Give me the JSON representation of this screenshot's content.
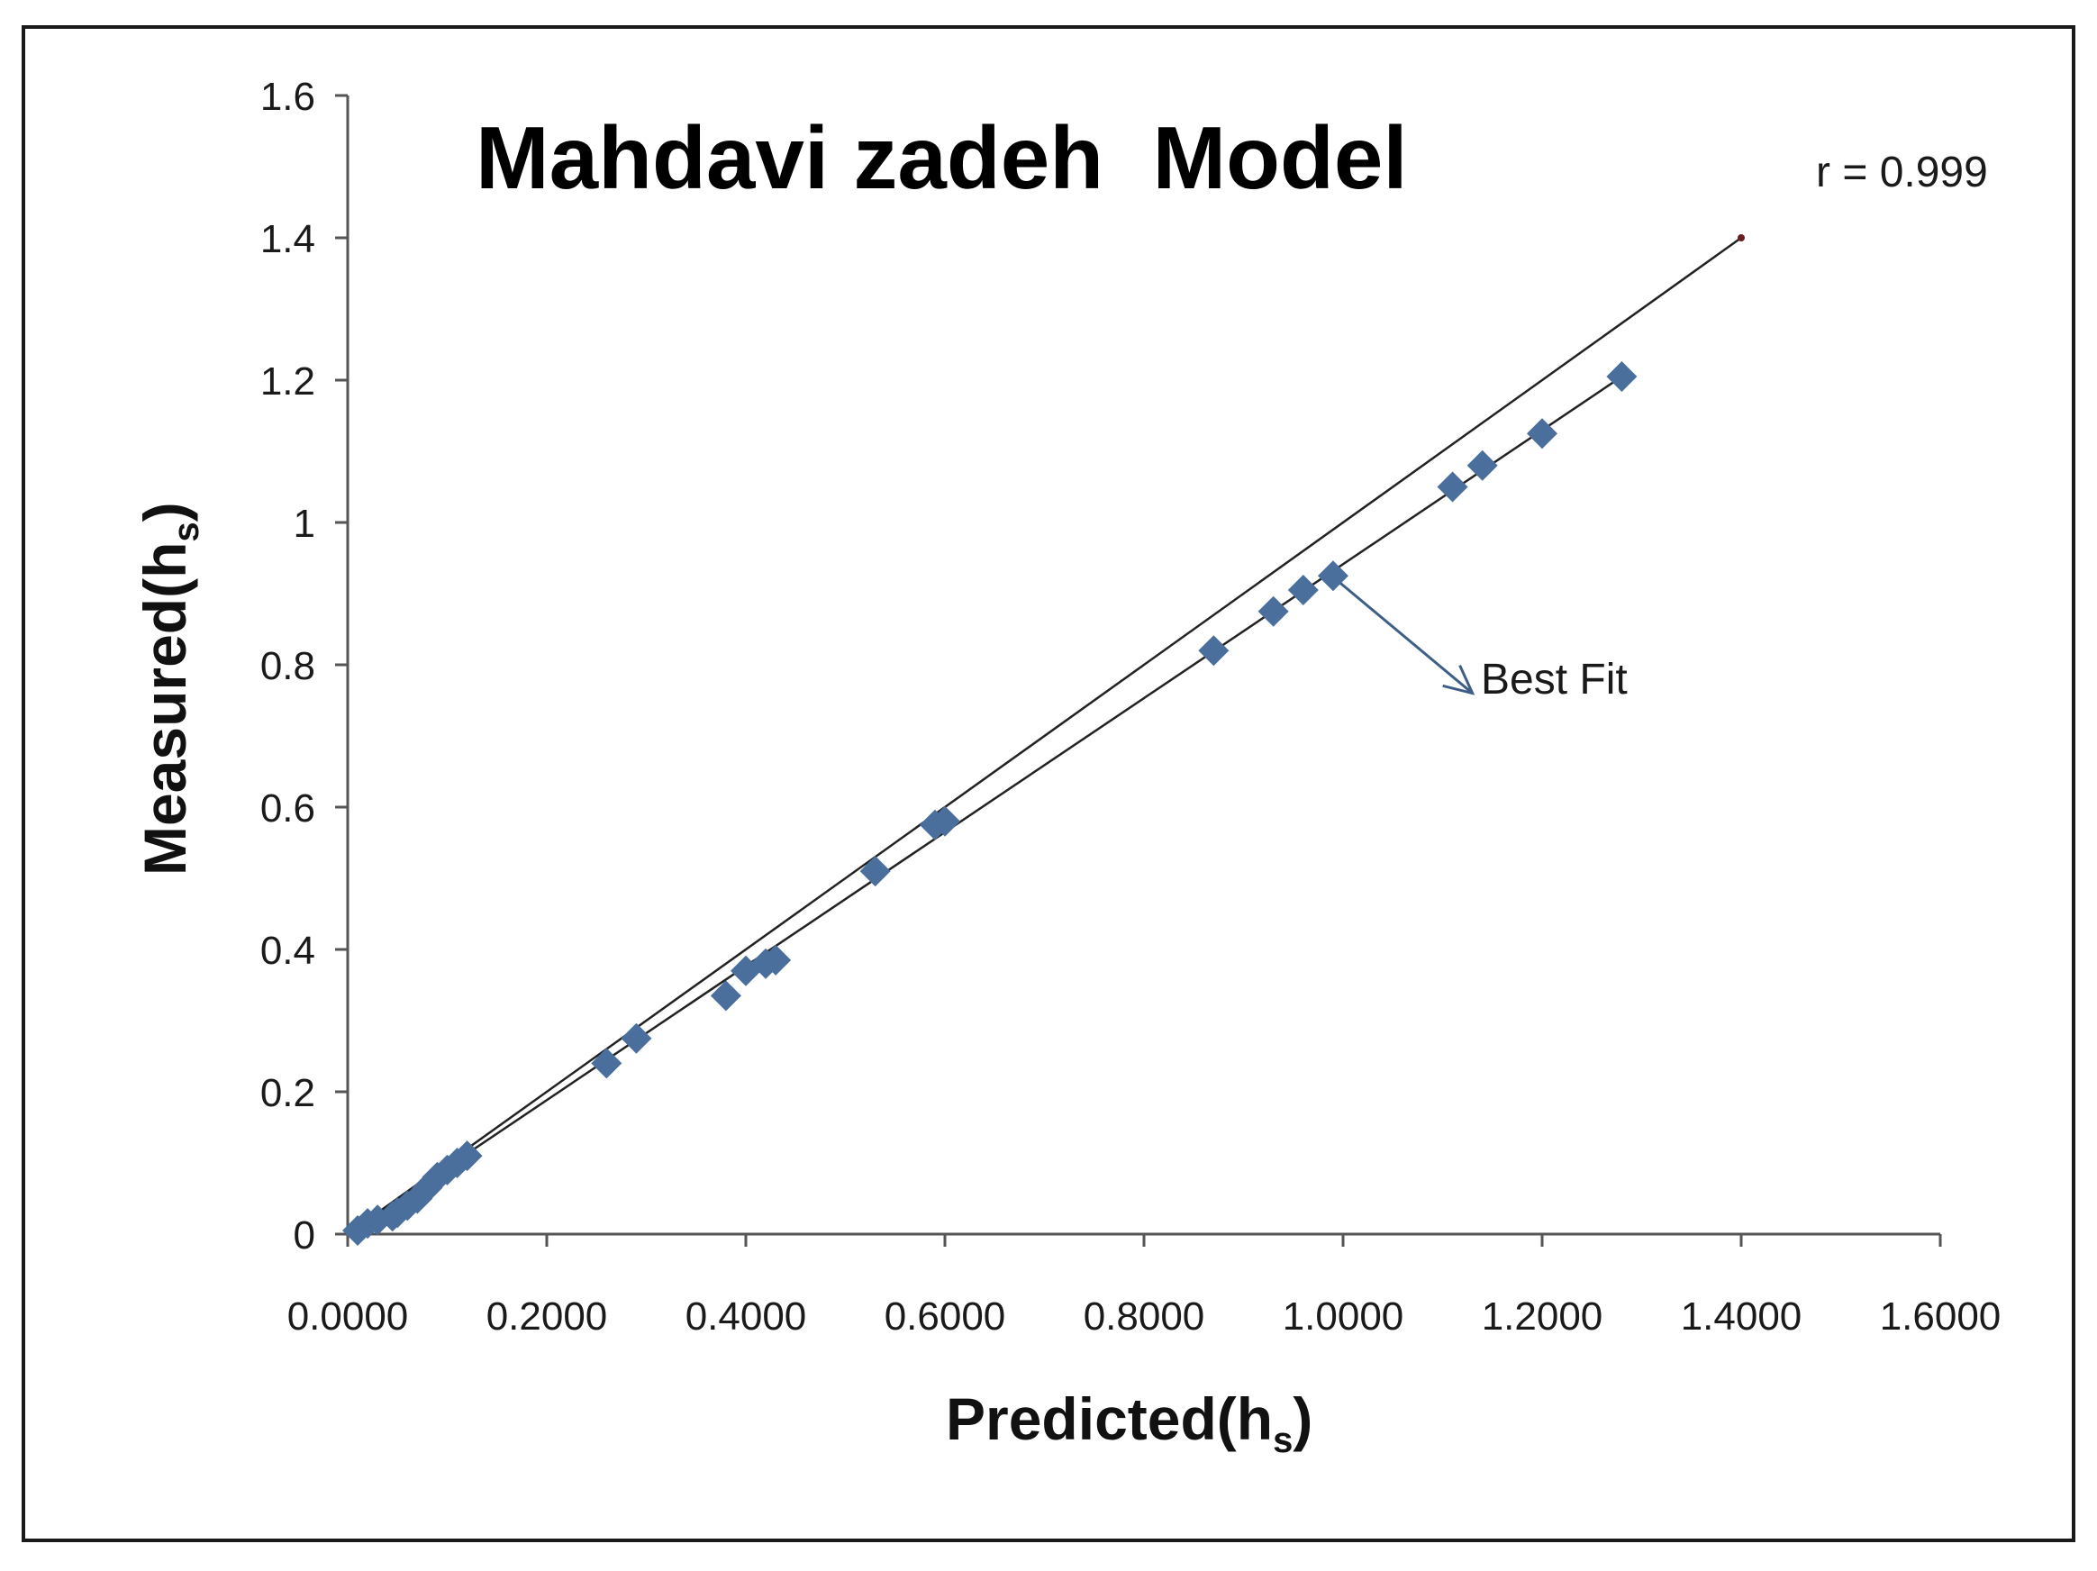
{
  "chart_data": {
    "type": "scatter",
    "title": "Mahdavi zadeh  Model",
    "xlabel": "Predicted(h",
    "xlabel_sub": "s",
    "xlabel_close": ")",
    "ylabel": "Measured(h",
    "ylabel_sub": "s",
    "ylabel_close": ")",
    "xlim": [
      0,
      1.6
    ],
    "ylim": [
      0,
      1.6
    ],
    "x_ticks": [
      "0.0000",
      "0.2000",
      "0.4000",
      "0.6000",
      "0.8000",
      "1.0000",
      "1.2000",
      "1.4000",
      "1.6000"
    ],
    "y_ticks": [
      "0",
      "0.2",
      "0.4",
      "0.6",
      "0.8",
      "1",
      "1.2",
      "1.4",
      "1.6"
    ],
    "x_tick_values": [
      0,
      0.2,
      0.4,
      0.6,
      0.8,
      1.0,
      1.2,
      1.4,
      1.6
    ],
    "y_tick_values": [
      0,
      0.2,
      0.4,
      0.6,
      0.8,
      1.0,
      1.2,
      1.4,
      1.6
    ],
    "grid": false,
    "series": [
      {
        "marker": "diamond",
        "color": "#4a6f9c",
        "points": [
          [
            0.01,
            0.005
          ],
          [
            0.02,
            0.015
          ],
          [
            0.03,
            0.02
          ],
          [
            0.045,
            0.025
          ],
          [
            0.05,
            0.03
          ],
          [
            0.06,
            0.04
          ],
          [
            0.07,
            0.05
          ],
          [
            0.08,
            0.065
          ],
          [
            0.09,
            0.08
          ],
          [
            0.1,
            0.09
          ],
          [
            0.11,
            0.1
          ],
          [
            0.12,
            0.11
          ],
          [
            0.26,
            0.24
          ],
          [
            0.29,
            0.275
          ],
          [
            0.38,
            0.335
          ],
          [
            0.4,
            0.37
          ],
          [
            0.42,
            0.38
          ],
          [
            0.43,
            0.385
          ],
          [
            0.53,
            0.51
          ],
          [
            0.59,
            0.575
          ],
          [
            0.6,
            0.58
          ],
          [
            0.87,
            0.82
          ],
          [
            0.93,
            0.875
          ],
          [
            0.96,
            0.905
          ],
          [
            0.99,
            0.925
          ],
          [
            1.11,
            1.05
          ],
          [
            1.14,
            1.08
          ],
          [
            1.2,
            1.125
          ],
          [
            1.28,
            1.205
          ]
        ]
      }
    ],
    "lines": [
      {
        "role": "line-1-to-1",
        "from": [
          0,
          0
        ],
        "to": [
          1.4,
          1.4
        ],
        "color": "#222222"
      },
      {
        "role": "best-fit-line",
        "from": [
          0,
          0
        ],
        "to": [
          1.28,
          1.205
        ],
        "color": "#222222"
      }
    ],
    "annotations": {
      "r_label": "r = 0.999",
      "best_fit_label": "Best Fit",
      "arrow_from": [
        0.99,
        0.925
      ],
      "arrow_to": [
        1.13,
        0.76
      ]
    }
  }
}
